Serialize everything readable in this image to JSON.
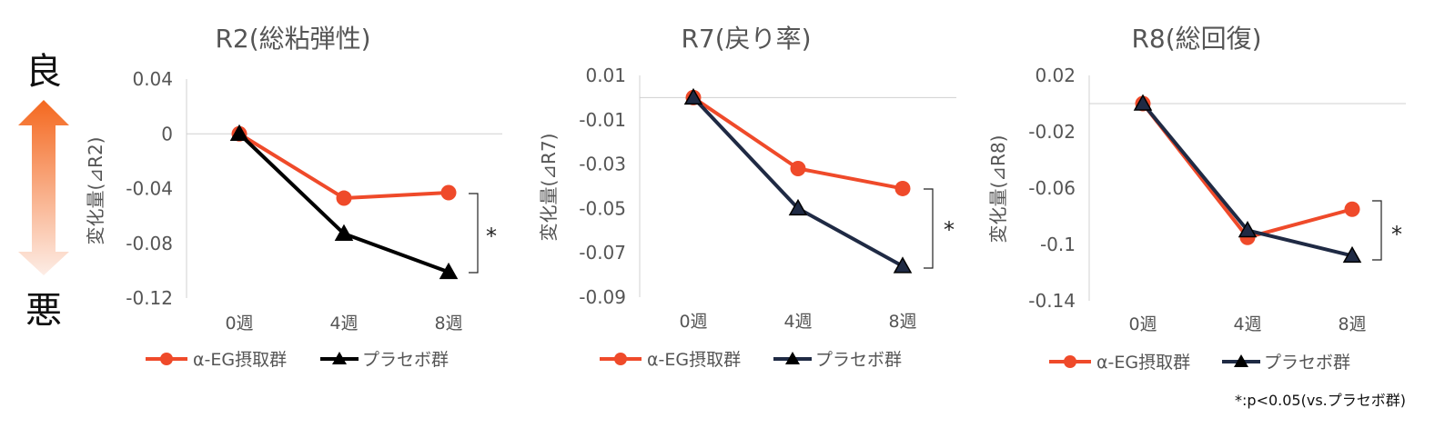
{
  "indicator": {
    "good_label": "良",
    "bad_label": "悪"
  },
  "footnote": "*:p<0.05(vs.プラセボ群)",
  "colors": {
    "alpha": "#EF4A2A",
    "placebo_black": "#000000",
    "placebo_navy": "#1F2A44",
    "arrow_top": "#F4681F",
    "arrow_bottom": "#FDEDE6"
  },
  "legend": {
    "alpha": "α-EG摂取群",
    "placebo": "プラセボ群"
  },
  "chart_data": [
    {
      "type": "line",
      "title": "R2(総粘弾性)",
      "ylabel": "変化量(⊿R2)",
      "categories": [
        "0週",
        "4週",
        "8週"
      ],
      "yticks": [
        "0.04",
        "0",
        "-0.04",
        "-0.08",
        "-0.12"
      ],
      "ylim": [
        -0.12,
        0.04
      ],
      "series": [
        {
          "name": "α-EG摂取群",
          "values": [
            0,
            -0.047,
            -0.043
          ],
          "marker": "circle"
        },
        {
          "name": "プラセボ群",
          "values": [
            0,
            -0.073,
            -0.101
          ],
          "marker": "triangle"
        }
      ],
      "significance": "*"
    },
    {
      "type": "line",
      "title": "R7(戻り率)",
      "ylabel": "変化量(⊿R7)",
      "categories": [
        "0週",
        "4週",
        "8週"
      ],
      "yticks": [
        "0.01",
        "-0.01",
        "-0.03",
        "-0.05",
        "-0.07",
        "-0.09"
      ],
      "ylim": [
        -0.09,
        0.01
      ],
      "series": [
        {
          "name": "α-EG摂取群",
          "values": [
            0,
            -0.032,
            -0.041
          ],
          "marker": "circle"
        },
        {
          "name": "プラセボ群",
          "values": [
            0,
            -0.05,
            -0.076
          ],
          "marker": "triangle"
        }
      ],
      "significance": "*"
    },
    {
      "type": "line",
      "title": "R8(総回復)",
      "ylabel": "変化量(⊿R8)",
      "categories": [
        "0週",
        "4週",
        "8週"
      ],
      "yticks": [
        "0.02",
        "-0.02",
        "-0.06",
        "-0.1",
        "-0.14"
      ],
      "ylim": [
        -0.14,
        0.02
      ],
      "series": [
        {
          "name": "α-EG摂取群",
          "values": [
            0,
            -0.095,
            -0.075
          ],
          "marker": "circle"
        },
        {
          "name": "プラセボ群",
          "values": [
            0,
            -0.09,
            -0.108
          ],
          "marker": "triangle"
        }
      ],
      "significance": "*"
    }
  ]
}
